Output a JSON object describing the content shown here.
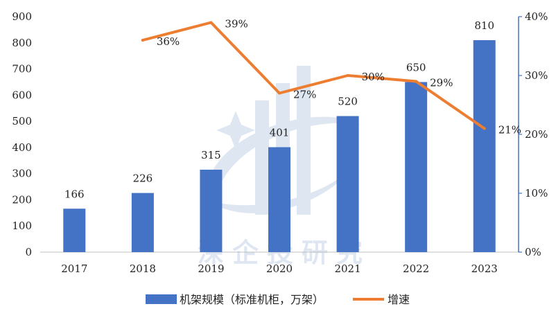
{
  "chart_data": {
    "type": "bar",
    "categories": [
      "2017",
      "2018",
      "2019",
      "2020",
      "2021",
      "2022",
      "2023"
    ],
    "series": [
      {
        "name": "机架规模（标准机柜，万架）",
        "type": "bar",
        "axis": "left",
        "color": "#4472C4",
        "values": [
          166,
          226,
          315,
          401,
          520,
          650,
          810
        ],
        "labels": [
          "166",
          "226",
          "315",
          "401",
          "520",
          "650",
          "810"
        ]
      },
      {
        "name": "增速",
        "type": "line",
        "axis": "right",
        "color": "#ED7D31",
        "values": [
          null,
          0.36,
          0.39,
          0.27,
          0.3,
          0.29,
          0.21
        ],
        "labels": [
          "",
          "36%",
          "39%",
          "27%",
          "30%",
          "29%",
          "21%"
        ]
      }
    ],
    "y_left": {
      "lim": [
        0,
        900
      ],
      "ticks": [
        "0",
        "100",
        "200",
        "300",
        "400",
        "500",
        "600",
        "700",
        "800",
        "900"
      ]
    },
    "y_right": {
      "lim": [
        0,
        0.4
      ],
      "ticks": [
        "0%",
        "10%",
        "20%",
        "30%",
        "40%"
      ]
    },
    "legend_position": "bottom",
    "grid": false,
    "watermark_text": "深企投研究"
  }
}
